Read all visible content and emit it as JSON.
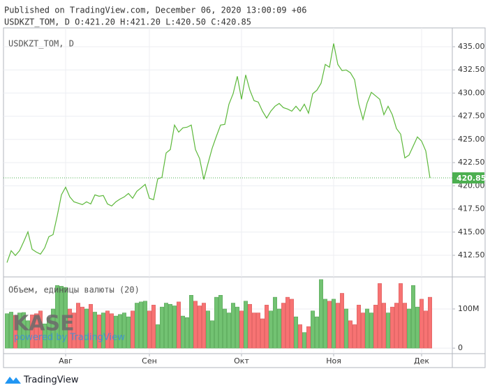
{
  "chart_data": {
    "type": "line",
    "title": "Published on TradingView.com, December 06, 2020 13:00:09 +06",
    "subtitle": "USDKZT_TOM, D O:421.20 H:421.20 L:420.50 C:420.85",
    "pane_label": "USDKZT_TOM, D",
    "volume_label": "Объем, единицы валюты (20)",
    "watermark": "KASE",
    "watermark_sub": "powered by TradingView",
    "footer": "TradingView",
    "categories": [
      null,
      null,
      null,
      null,
      null,
      null,
      null,
      null,
      null,
      null,
      null,
      null,
      null,
      null,
      "Авг",
      null,
      null,
      null,
      null,
      null,
      null,
      null,
      null,
      null,
      null,
      null,
      null,
      null,
      null,
      null,
      null,
      null,
      null,
      null,
      "Сен",
      null,
      null,
      null,
      null,
      null,
      null,
      null,
      null,
      null,
      null,
      null,
      null,
      null,
      null,
      null,
      null,
      null,
      null,
      null,
      null,
      null,
      "Окт",
      null,
      null,
      null,
      null,
      null,
      null,
      null,
      null,
      null,
      null,
      null,
      null,
      null,
      null,
      null,
      null,
      null,
      null,
      null,
      null,
      null,
      "Ноя",
      null,
      null,
      null,
      null,
      null,
      null,
      null,
      null,
      null,
      null,
      null,
      null,
      null,
      null,
      null,
      null,
      null,
      null,
      null,
      null,
      "Дек",
      null,
      null
    ],
    "series": [
      {
        "name": "USDKZT_TOM",
        "color": "#5cb83a",
        "values": [
          411.72,
          413.0,
          412.48,
          413.0,
          413.98,
          415.03,
          413.15,
          412.85,
          412.63,
          413.3,
          414.51,
          414.73,
          416.76,
          419.02,
          419.85,
          418.8,
          418.27,
          418.12,
          417.97,
          418.27,
          418.04,
          419.02,
          418.87,
          418.95,
          418.04,
          417.82,
          418.27,
          418.57,
          418.8,
          419.17,
          418.65,
          419.4,
          419.77,
          420.15,
          418.65,
          418.5,
          420.75,
          420.9,
          423.54,
          423.91,
          426.55,
          425.79,
          426.25,
          426.32,
          426.55,
          423.91,
          422.93,
          420.68,
          422.41,
          424.06,
          425.34,
          426.55,
          426.62,
          428.8,
          429.93,
          431.81,
          429.33,
          431.96,
          430.31,
          429.18,
          429.03,
          428.05,
          427.3,
          428.05,
          428.58,
          428.88,
          428.43,
          428.28,
          428.05,
          428.58,
          428.05,
          428.8,
          427.83,
          429.93,
          430.31,
          431.06,
          433.09,
          432.79,
          435.35,
          433.09,
          432.42,
          432.49,
          432.19,
          431.44,
          428.8,
          427.15,
          428.95,
          430.08,
          429.71,
          429.33,
          427.67,
          428.58,
          427.67,
          426.17,
          425.57,
          423.01,
          423.31,
          424.29,
          425.27,
          424.82,
          423.76,
          420.85
        ]
      },
      {
        "name": "Объем",
        "type": "bar",
        "axis": "y2",
        "up_color": "#72c272",
        "down_color": "#f77373",
        "values": [
          88000000.0,
          92000000.0,
          84000000.0,
          90000000.0,
          91000000.0,
          70000000.0,
          85000000.0,
          88000000.0,
          95000000.0,
          62000000.0,
          78000000.0,
          100000000.0,
          160000000.0,
          158000000.0,
          155000000.0,
          100000000.0,
          90000000.0,
          115000000.0,
          105000000.0,
          100000000.0,
          112000000.0,
          92000000.0,
          85000000.0,
          90000000.0,
          95000000.0,
          88000000.0,
          82000000.0,
          86000000.0,
          90000000.0,
          80000000.0,
          95000000.0,
          115000000.0,
          118000000.0,
          120000000.0,
          95000000.0,
          110000000.0,
          60000000.0,
          105000000.0,
          115000000.0,
          112000000.0,
          108000000.0,
          118000000.0,
          82000000.0,
          78000000.0,
          135000000.0,
          120000000.0,
          108000000.0,
          115000000.0,
          95000000.0,
          70000000.0,
          130000000.0,
          135000000.0,
          100000000.0,
          90000000.0,
          115000000.0,
          105000000.0,
          95000000.0,
          120000000.0,
          112000000.0,
          90000000.0,
          90000000.0,
          75000000.0,
          110000000.0,
          95000000.0,
          130000000.0,
          100000000.0,
          115000000.0,
          130000000.0,
          125000000.0,
          80000000.0,
          60000000.0,
          40000000.0,
          55000000.0,
          95000000.0,
          80000000.0,
          175000000.0,
          125000000.0,
          120000000.0,
          125000000.0,
          115000000.0,
          140000000.0,
          100000000.0,
          70000000.0,
          60000000.0,
          110000000.0,
          90000000.0,
          100000000.0,
          90000000.0,
          110000000.0,
          165000000.0,
          115000000.0,
          90000000.0,
          105000000.0,
          115000000.0,
          165000000.0,
          115000000.0,
          100000000.0,
          160000000.0,
          105000000.0,
          125000000.0,
          95000000.0,
          130000000.0
        ]
      }
    ],
    "ylim": [
      410.17,
      437.03
    ],
    "yticks": [
      {
        "value": 412.5,
        "label": "412.50"
      },
      {
        "value": 415,
        "label": "415.00"
      },
      {
        "value": 417.5,
        "label": "417.50"
      },
      {
        "value": 420,
        "label": "420.00"
      },
      {
        "value": 422.5,
        "label": "422.50"
      },
      {
        "value": 425,
        "label": "425.00"
      },
      {
        "value": 427.5,
        "label": "427.50"
      },
      {
        "value": 430,
        "label": "430.00"
      },
      {
        "value": 432.5,
        "label": "432.50"
      },
      {
        "value": 435,
        "label": "435.00"
      }
    ],
    "y2lim": [
      -14000000.0,
      180000000.0
    ],
    "y2ticks": [
      0,
      {
        "value": 100000000.0,
        "label": "100M"
      }
    ],
    "grid": true,
    "last_price_color": "#4caf50"
  }
}
